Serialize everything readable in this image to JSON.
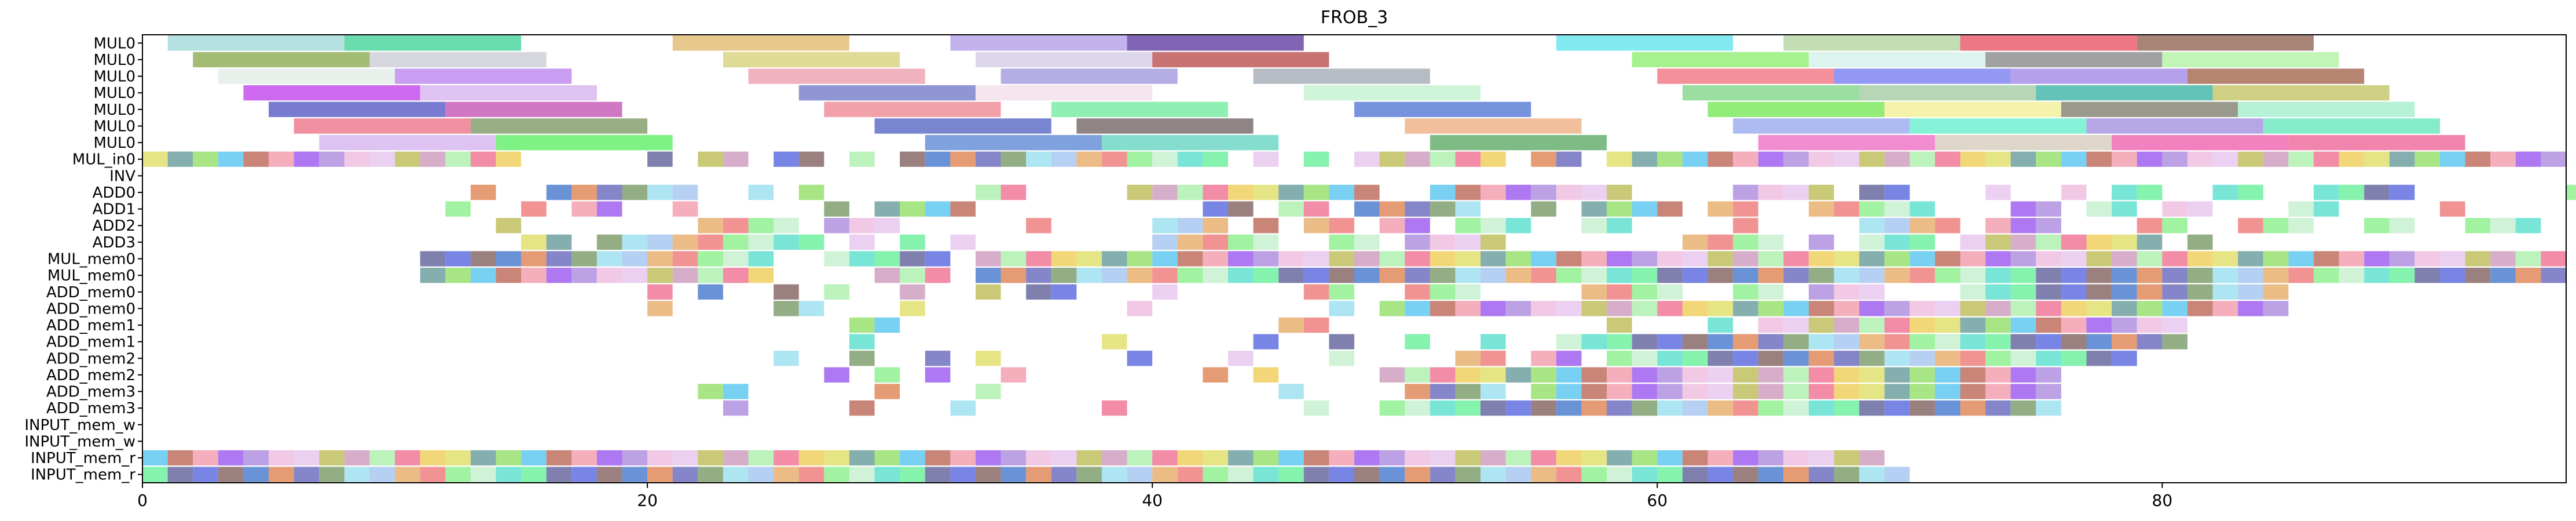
{
  "chart_data": {
    "type": "gantt",
    "title": "FROB_3",
    "xlabel": "",
    "ylabel": "",
    "xlim": [
      0,
      96
    ],
    "xticks": [
      0,
      20,
      40,
      60,
      80
    ],
    "grid": false,
    "rows": [
      "MUL0",
      "MUL0",
      "MUL0",
      "MUL0",
      "MUL0",
      "MUL0",
      "MUL0",
      "MUL_in0",
      "INV",
      "ADD0",
      "ADD1",
      "ADD2",
      "ADD3",
      "MUL_mem0",
      "MUL_mem0",
      "ADD_mem0",
      "ADD_mem0",
      "ADD_mem1",
      "ADD_mem1",
      "ADD_mem2",
      "ADD_mem2",
      "ADD_mem3",
      "ADD_mem3",
      "INPUT_mem_w",
      "INPUT_mem_w",
      "INPUT_mem_r",
      "INPUT_mem_r"
    ],
    "bar_groups": [
      {
        "row": 0,
        "bars": [
          [
            1,
            7,
            "#a9dcdc"
          ],
          [
            8,
            7,
            "#4fd6a0"
          ],
          [
            21,
            7,
            "#e3c07a"
          ],
          [
            32,
            7,
            "#b7a4ea"
          ],
          [
            39,
            7,
            "#6a4aa8"
          ],
          [
            56,
            7,
            "#6ee6f0"
          ],
          [
            65,
            7,
            "#b9d8a8"
          ],
          [
            72,
            7,
            "#ea5f70"
          ],
          [
            79,
            7,
            "#9a7060"
          ]
        ]
      },
      {
        "row": 1,
        "bars": [
          [
            2,
            7,
            "#93b05c"
          ],
          [
            9,
            7,
            "#cfd0d8"
          ],
          [
            23,
            7,
            "#d9d482"
          ],
          [
            33,
            7,
            "#d8d0e8"
          ],
          [
            40,
            7,
            "#c05a5a"
          ],
          [
            59,
            7,
            "#96f07a"
          ],
          [
            66,
            7,
            "#d6f2ea"
          ],
          [
            73,
            7,
            "#909090"
          ],
          [
            80,
            7,
            "#b6f2a8"
          ]
        ]
      },
      {
        "row": 2,
        "bars": [
          [
            3,
            7,
            "#e3ede7"
          ],
          [
            10,
            7,
            "#c08cf0"
          ],
          [
            24,
            7,
            "#eea4b4"
          ],
          [
            34,
            7,
            "#a7a0e0"
          ],
          [
            44,
            7,
            "#a8b0b8"
          ],
          [
            60,
            7,
            "#f27c88"
          ],
          [
            67,
            7,
            "#8086f0"
          ],
          [
            74,
            7,
            "#a890e8"
          ],
          [
            81,
            7,
            "#a87058"
          ]
        ]
      },
      {
        "row": 3,
        "bars": [
          [
            4,
            7,
            "#c450ec"
          ],
          [
            11,
            7,
            "#d8b8f0"
          ],
          [
            26,
            7,
            "#7c84cc"
          ],
          [
            33,
            7,
            "#f2e0ec"
          ],
          [
            46,
            7,
            "#c8f2d0"
          ],
          [
            61,
            7,
            "#8ad890"
          ],
          [
            68,
            7,
            "#a8d0a8"
          ],
          [
            75,
            7,
            "#48b8ac"
          ],
          [
            82,
            7,
            "#c8c870"
          ]
        ]
      },
      {
        "row": 4,
        "bars": [
          [
            5,
            7,
            "#6064c8"
          ],
          [
            12,
            7,
            "#c860b8"
          ],
          [
            27,
            7,
            "#f0909c"
          ],
          [
            36,
            7,
            "#7ceca4"
          ],
          [
            48,
            7,
            "#6080d8"
          ],
          [
            62,
            7,
            "#80e860"
          ],
          [
            69,
            7,
            "#f2f09c"
          ],
          [
            76,
            7,
            "#888878"
          ],
          [
            83,
            7,
            "#a8f0d0"
          ]
        ]
      },
      {
        "row": 5,
        "bars": [
          [
            6,
            7,
            "#ee7c90"
          ],
          [
            13,
            7,
            "#88a070"
          ],
          [
            29,
            7,
            "#6070c8"
          ],
          [
            37,
            7,
            "#7e6e6e"
          ],
          [
            50,
            7,
            "#f0b48c"
          ],
          [
            63,
            7,
            "#a0aef0"
          ],
          [
            70,
            7,
            "#70f0d0"
          ],
          [
            77,
            7,
            "#a898e0"
          ],
          [
            84,
            7,
            "#70e8c0"
          ]
        ]
      },
      {
        "row": 6,
        "bars": [
          [
            7,
            7,
            "#d8b8f0"
          ],
          [
            14,
            7,
            "#68f070"
          ],
          [
            31,
            7,
            "#6890d8"
          ],
          [
            38,
            7,
            "#70d8c4"
          ],
          [
            51,
            7,
            "#68b070"
          ],
          [
            64,
            7,
            "#f078c8"
          ],
          [
            71,
            7,
            "#d8d0c0"
          ],
          [
            78,
            7,
            "#f06cb4"
          ],
          [
            85,
            7,
            "#f070a0"
          ]
        ]
      }
    ],
    "cells": [
      {
        "row": 7,
        "x": [
          0,
          1,
          2,
          3,
          4,
          5,
          6,
          7,
          8,
          9,
          10,
          11,
          12,
          13,
          14,
          20,
          22,
          23,
          25,
          26,
          28,
          30,
          31,
          32,
          33,
          34,
          35,
          36,
          37,
          38,
          39,
          40,
          41,
          42,
          44,
          46,
          48,
          49,
          50,
          51,
          52,
          53,
          55,
          56,
          58,
          59,
          60,
          61,
          62,
          63,
          64,
          65,
          66,
          67,
          68,
          69,
          70,
          71,
          72,
          73,
          74,
          75,
          76,
          77,
          78,
          79,
          80,
          81,
          82,
          83,
          84,
          85,
          86,
          87,
          88,
          89,
          90,
          91,
          92,
          93,
          94,
          95
        ]
      },
      {
        "row": 8,
        "x": []
      },
      {
        "row": 9,
        "x": [
          13,
          16,
          17,
          18,
          19,
          20,
          21,
          24,
          26,
          33,
          34,
          39,
          40,
          41,
          42,
          43,
          44,
          45,
          46,
          47,
          48,
          51,
          52,
          53,
          54,
          55,
          56,
          57,
          58,
          63,
          64,
          65,
          66,
          68,
          69,
          73,
          76,
          78,
          79,
          82,
          83,
          86,
          87,
          88,
          89,
          96
        ]
      },
      {
        "row": 10,
        "x": [
          12,
          15,
          17,
          18,
          21,
          27,
          29,
          30,
          31,
          32,
          42,
          43,
          45,
          46,
          48,
          49,
          50,
          51,
          52,
          55,
          57,
          58,
          59,
          60,
          62,
          63,
          66,
          67,
          68,
          69,
          70,
          74,
          75,
          77,
          78,
          80,
          81,
          85,
          86,
          91
        ]
      },
      {
        "row": 11,
        "x": [
          14,
          22,
          23,
          24,
          25,
          27,
          28,
          29,
          35,
          40,
          41,
          42,
          44,
          46,
          47,
          49,
          50,
          52,
          53,
          54,
          57,
          58,
          63,
          68,
          69,
          70,
          71,
          73,
          74,
          75,
          79,
          80,
          83,
          84,
          85,
          88,
          89,
          92,
          93,
          94
        ]
      },
      {
        "row": 12,
        "x": [
          15,
          16,
          18,
          19,
          20,
          21,
          22,
          23,
          24,
          25,
          26,
          28,
          30,
          32,
          40,
          41,
          42,
          43,
          44,
          47,
          48,
          50,
          51,
          52,
          53,
          61,
          62,
          63,
          64,
          66,
          68,
          69,
          70,
          72,
          73,
          74,
          75,
          76,
          77,
          78,
          79,
          81
        ]
      },
      {
        "row": 13,
        "x": [
          11,
          12,
          13,
          14,
          15,
          16,
          17,
          18,
          19,
          20,
          21,
          22,
          23,
          24,
          27,
          28,
          29,
          30,
          31,
          33,
          34,
          35,
          36,
          37,
          38,
          39,
          40,
          41,
          42,
          43,
          44,
          45,
          46,
          47,
          48,
          49,
          50,
          51,
          52,
          53,
          54,
          55,
          56,
          57,
          58,
          59,
          60,
          61,
          62,
          63,
          64,
          65,
          66,
          67,
          68,
          69,
          70,
          71,
          72,
          73,
          74,
          75,
          76,
          77,
          78,
          79,
          80,
          81,
          82,
          83,
          84,
          85,
          86,
          87,
          88,
          89,
          90,
          91,
          92,
          93,
          94,
          95
        ]
      },
      {
        "row": 14,
        "x": [
          11,
          12,
          13,
          14,
          15,
          16,
          17,
          18,
          19,
          20,
          21,
          22,
          23,
          24,
          29,
          30,
          31,
          33,
          34,
          35,
          36,
          37,
          38,
          39,
          40,
          41,
          42,
          43,
          44,
          45,
          46,
          47,
          48,
          49,
          50,
          51,
          52,
          53,
          54,
          55,
          56,
          57,
          58,
          59,
          60,
          61,
          62,
          63,
          64,
          65,
          66,
          67,
          68,
          69,
          70,
          71,
          72,
          73,
          74,
          75,
          76,
          77,
          78,
          79,
          80,
          81,
          82,
          83,
          84,
          85,
          86,
          87,
          88,
          89,
          90,
          91,
          92,
          93,
          94,
          95
        ]
      },
      {
        "row": 15,
        "x": [
          20,
          22,
          25,
          27,
          30,
          33,
          35,
          36,
          40,
          46,
          47,
          50,
          51,
          52,
          57,
          58,
          59,
          60,
          63,
          64,
          66,
          67,
          68,
          72,
          73,
          74,
          75,
          76,
          77,
          78,
          79,
          80,
          81,
          82,
          83,
          84
        ]
      },
      {
        "row": 16,
        "x": [
          20,
          25,
          26,
          30,
          39,
          47,
          49,
          50,
          51,
          52,
          53,
          54,
          55,
          56,
          57,
          58,
          59,
          60,
          61,
          62,
          63,
          64,
          65,
          66,
          67,
          68,
          69,
          70,
          71,
          72,
          73,
          74,
          75,
          76,
          77,
          78,
          79,
          80,
          81,
          82,
          83,
          84
        ]
      },
      {
        "row": 17,
        "x": [
          28,
          29,
          45,
          46,
          58,
          62,
          64,
          65,
          66,
          67,
          68,
          69,
          70,
          71,
          72,
          73,
          74,
          75,
          76,
          77,
          78,
          79,
          80
        ]
      },
      {
        "row": 18,
        "x": [
          28,
          38,
          44,
          47,
          50,
          53,
          56,
          57,
          58,
          59,
          60,
          61,
          62,
          63,
          64,
          65,
          66,
          67,
          68,
          69,
          70,
          71,
          72,
          73,
          74,
          75,
          76,
          77,
          78,
          79,
          80
        ]
      },
      {
        "row": 19,
        "x": [
          25,
          28,
          31,
          33,
          39,
          43,
          47,
          52,
          53,
          55,
          56,
          58,
          59,
          60,
          61,
          62,
          63,
          64,
          65,
          66,
          67,
          68,
          69,
          70,
          71,
          72,
          73,
          74,
          75,
          76,
          77,
          78
        ]
      },
      {
        "row": 20,
        "x": [
          27,
          29,
          31,
          34,
          42,
          44,
          49,
          50,
          51,
          52,
          53,
          54,
          55,
          56,
          57,
          58,
          59,
          60,
          61,
          62,
          63,
          64,
          65,
          66,
          67,
          68,
          69,
          70,
          71,
          72,
          73,
          74,
          75
        ]
      },
      {
        "row": 21,
        "x": [
          22,
          23,
          29,
          33,
          45,
          50,
          51,
          52,
          53,
          55,
          56,
          57,
          58,
          59,
          60,
          61,
          62,
          63,
          64,
          65,
          66,
          67,
          68,
          69,
          70,
          71,
          72,
          73,
          74,
          75
        ]
      },
      {
        "row": 22,
        "x": [
          23,
          28,
          32,
          38,
          46,
          49,
          50,
          51,
          52,
          53,
          54,
          55,
          56,
          57,
          58,
          59,
          60,
          61,
          62,
          63,
          64,
          65,
          66,
          67,
          68,
          69,
          70,
          71,
          72,
          73,
          74,
          75
        ]
      },
      {
        "row": 23,
        "x": []
      },
      {
        "row": 24,
        "x": []
      },
      {
        "row": 25,
        "x": [
          0,
          1,
          2,
          3,
          4,
          5,
          6,
          7,
          8,
          9,
          10,
          11,
          12,
          13,
          14,
          15,
          16,
          17,
          18,
          19,
          20,
          21,
          22,
          23,
          24,
          25,
          26,
          27,
          28,
          29,
          30,
          31,
          32,
          33,
          34,
          35,
          36,
          37,
          38,
          39,
          40,
          41,
          42,
          43,
          44,
          45,
          46,
          47,
          48,
          49,
          50,
          51,
          52,
          53,
          54,
          55,
          56,
          57,
          58,
          59,
          60,
          61,
          62,
          63,
          64,
          65,
          66,
          67,
          68
        ]
      },
      {
        "row": 26,
        "x": [
          0,
          1,
          2,
          3,
          4,
          5,
          6,
          7,
          8,
          9,
          10,
          11,
          12,
          13,
          14,
          15,
          16,
          17,
          18,
          19,
          20,
          21,
          22,
          23,
          24,
          25,
          26,
          27,
          28,
          29,
          30,
          31,
          32,
          33,
          34,
          35,
          36,
          37,
          38,
          39,
          40,
          41,
          42,
          43,
          44,
          45,
          46,
          47,
          48,
          49,
          50,
          51,
          52,
          53,
          54,
          55,
          56,
          57,
          58,
          59,
          60,
          61,
          62,
          63,
          64,
          65,
          66,
          67,
          68,
          69
        ]
      }
    ],
    "palette": [
      "#a8c8f0",
      "#f2a0b0",
      "#c8f0d0",
      "#e8c8f0",
      "#6070e0",
      "#f07898",
      "#7070c0",
      "#98e070",
      "#e8b070",
      "#a060f0",
      "#60e0d0",
      "#c0c060",
      "#8a6a6a",
      "#f0d060",
      "#80a070",
      "#60c8f0",
      "#f08080",
      "#b090e0",
      "#70f0a0",
      "#d0a0c0",
      "#5080d0",
      "#e0e070",
      "#a0e0f0",
      "#c07060",
      "#90f090",
      "#f0c0e0",
      "#6a6aa0",
      "#b0f0b0",
      "#e08a5a",
      "#70a0a0"
    ]
  }
}
